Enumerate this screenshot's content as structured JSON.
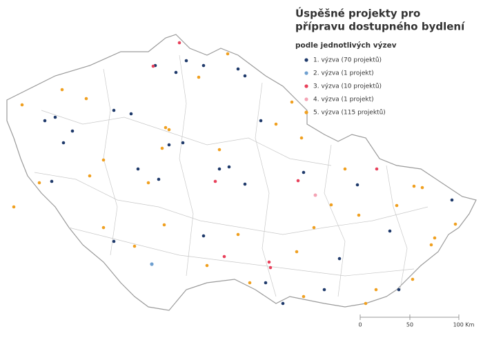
{
  "title": [
    "Úspěšné projekty pro",
    "přípravu dostupného bydlení"
  ],
  "subtitle": "podle jednotlivých výzev",
  "legend": [
    {
      "label": "1. výzva (70 projektů)",
      "color": "#1f3a6b"
    },
    {
      "label": "2. výzva (1 projekt)",
      "color": "#6fa0d0"
    },
    {
      "label": "3. výzva (10 projektů)",
      "color": "#e8415b"
    },
    {
      "label": "4. výzva (1 projekt)",
      "color": "#f4a3b4"
    },
    {
      "label": "5. výzva (115 projektů)",
      "color": "#f0a020"
    }
  ],
  "scale": [
    "0",
    "50",
    "100 Km"
  ]
}
